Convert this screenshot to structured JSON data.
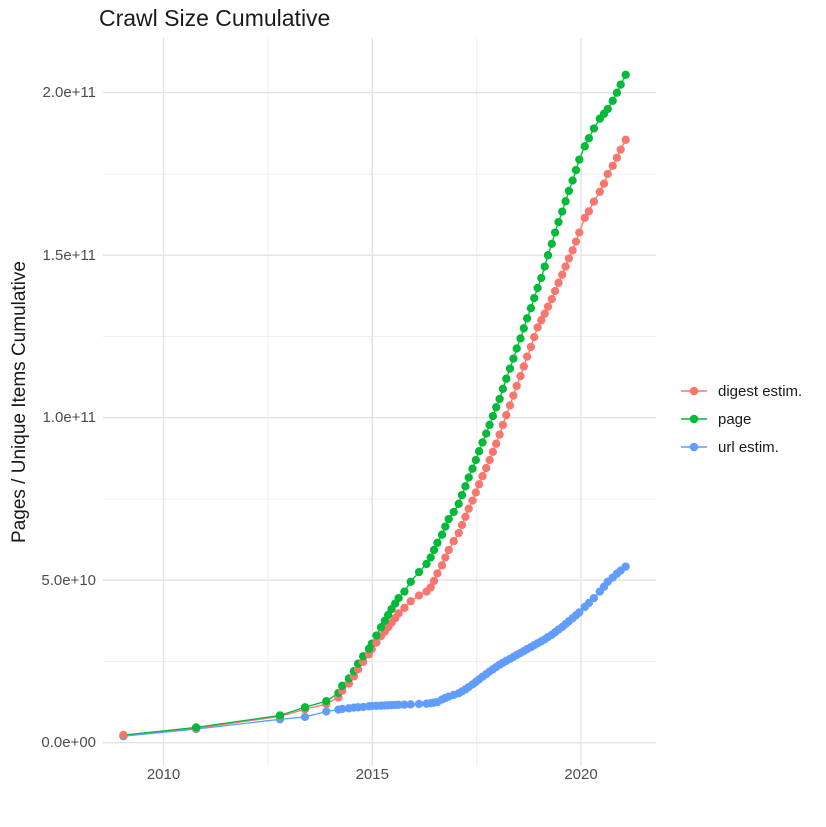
{
  "title": "Crawl Size Cumulative",
  "y_axis_title": "Pages / Unique Items Cumulative",
  "colors": {
    "background": "#FFFFFF",
    "grid_major": "#E3E3E3",
    "grid_minor": "#EFEFEF",
    "tick_text": "#4D4D4D",
    "text": "#1A1A1A",
    "digest": "#F8766D",
    "page": "#00BA38",
    "url": "#619CFF"
  },
  "chart_data": {
    "type": "line",
    "title": "Crawl Size Cumulative",
    "xlabel": "",
    "ylabel": "Pages / Unique Items Cumulative",
    "legend_position": "right",
    "grid": true,
    "x_unit": "year (decimal, one point per crawl)",
    "y_values_unit": "billions (1e9 items)",
    "xlim": [
      2008.5,
      2021.8
    ],
    "ylim_billions": [
      0,
      216
    ],
    "x_ticks": [
      {
        "value": 2010,
        "label": "2010"
      },
      {
        "value": 2015,
        "label": "2015"
      },
      {
        "value": 2020,
        "label": "2020"
      }
    ],
    "x_minor": [
      2012.5,
      2017.5
    ],
    "y_ticks": [
      {
        "value": 0,
        "label": "0.0e+00"
      },
      {
        "value": 50,
        "label": "5.0e+10"
      },
      {
        "value": 100,
        "label": "1.0e+11"
      },
      {
        "value": 150,
        "label": "1.5e+11"
      },
      {
        "value": 200,
        "label": "2.0e+11"
      }
    ],
    "y_minor": [
      25,
      75,
      125,
      175
    ],
    "x": [
      2009.04,
      2010.78,
      2012.79,
      2013.39,
      2013.9,
      2014.19,
      2014.28,
      2014.44,
      2014.56,
      2014.66,
      2014.78,
      2014.92,
      2014.99,
      2015.1,
      2015.21,
      2015.3,
      2015.38,
      2015.46,
      2015.55,
      2015.63,
      2015.77,
      2015.92,
      2016.12,
      2016.3,
      2016.4,
      2016.48,
      2016.56,
      2016.67,
      2016.75,
      2016.83,
      2016.95,
      2017.07,
      2017.15,
      2017.23,
      2017.31,
      2017.4,
      2017.48,
      2017.56,
      2017.64,
      2017.73,
      2017.81,
      2017.89,
      2017.97,
      2018.05,
      2018.13,
      2018.21,
      2018.3,
      2018.38,
      2018.46,
      2018.55,
      2018.63,
      2018.71,
      2018.8,
      2018.88,
      2018.96,
      2019.05,
      2019.13,
      2019.21,
      2019.3,
      2019.38,
      2019.46,
      2019.55,
      2019.63,
      2019.71,
      2019.8,
      2019.88,
      2019.96,
      2020.09,
      2020.19,
      2020.31,
      2020.45,
      2020.55,
      2020.64,
      2020.76,
      2020.86,
      2020.95,
      2021.07
    ],
    "series": [
      {
        "name": "digest estim.",
        "color": "#F8766D",
        "values": [
          2.4,
          4.4,
          8.1,
          10.3,
          11.9,
          13.9,
          16.0,
          18.2,
          20.4,
          22.6,
          24.9,
          27.2,
          28.8,
          30.8,
          32.8,
          34.2,
          35.5,
          36.9,
          38.3,
          39.8,
          41.5,
          43.5,
          45.3,
          46.5,
          47.8,
          49.8,
          52.1,
          54.6,
          57.0,
          59.3,
          62.0,
          64.5,
          67.0,
          69.5,
          72.0,
          74.5,
          77.0,
          79.5,
          82.0,
          84.5,
          87.0,
          89.5,
          92.0,
          94.8,
          97.8,
          100.8,
          103.8,
          106.8,
          109.8,
          112.8,
          115.8,
          118.8,
          121.8,
          124.8,
          127.8,
          130.0,
          132.0,
          134.2,
          136.5,
          139.0,
          141.5,
          144.0,
          146.5,
          149.0,
          151.5,
          154.2,
          157.0,
          161.5,
          163.5,
          166.5,
          169.5,
          172.0,
          175.0,
          177.5,
          180.0,
          182.5,
          185.5
        ]
      },
      {
        "name": "page",
        "color": "#00BA38",
        "values": [
          2.3,
          4.7,
          8.4,
          10.9,
          12.8,
          15.3,
          17.5,
          19.8,
          22.0,
          24.3,
          26.6,
          28.9,
          30.5,
          33.0,
          35.5,
          37.5,
          39.3,
          41.1,
          42.8,
          44.5,
          46.5,
          49.5,
          52.5,
          55.0,
          57.0,
          59.3,
          61.5,
          64.0,
          66.5,
          68.8,
          71.0,
          73.5,
          76.2,
          78.9,
          81.6,
          84.3,
          87.0,
          89.7,
          92.4,
          95.1,
          97.8,
          100.5,
          103.2,
          105.8,
          108.9,
          112.0,
          115.1,
          118.2,
          121.3,
          124.4,
          127.5,
          130.6,
          133.7,
          136.8,
          139.9,
          143.0,
          146.5,
          150.0,
          153.5,
          157.0,
          160.2,
          163.4,
          166.6,
          169.8,
          173.0,
          176.2,
          179.4,
          183.5,
          186.0,
          189.0,
          192.0,
          193.5,
          195.0,
          197.5,
          200.0,
          202.5,
          205.5
        ]
      },
      {
        "name": "url estim.",
        "color": "#619CFF",
        "values": [
          2.0,
          4.2,
          7.2,
          7.9,
          9.6,
          10.2,
          10.4,
          10.6,
          10.8,
          10.9,
          11.0,
          11.2,
          11.3,
          11.35,
          11.4,
          11.45,
          11.5,
          11.55,
          11.6,
          11.65,
          11.7,
          11.8,
          11.9,
          12.0,
          12.15,
          12.3,
          12.5,
          13.3,
          13.8,
          14.2,
          14.7,
          15.2,
          15.8,
          16.4,
          17.1,
          17.9,
          18.7,
          19.5,
          20.3,
          21.1,
          21.9,
          22.6,
          23.3,
          24.0,
          24.6,
          25.2,
          25.8,
          26.4,
          27.0,
          27.6,
          28.2,
          28.8,
          29.4,
          30.0,
          30.6,
          31.2,
          31.8,
          32.5,
          33.2,
          34.0,
          34.8,
          35.6,
          36.5,
          37.4,
          38.3,
          39.2,
          40.1,
          41.8,
          43.0,
          44.5,
          46.5,
          48.0,
          49.5,
          50.8,
          52.0,
          53.0,
          54.2
        ]
      }
    ]
  }
}
